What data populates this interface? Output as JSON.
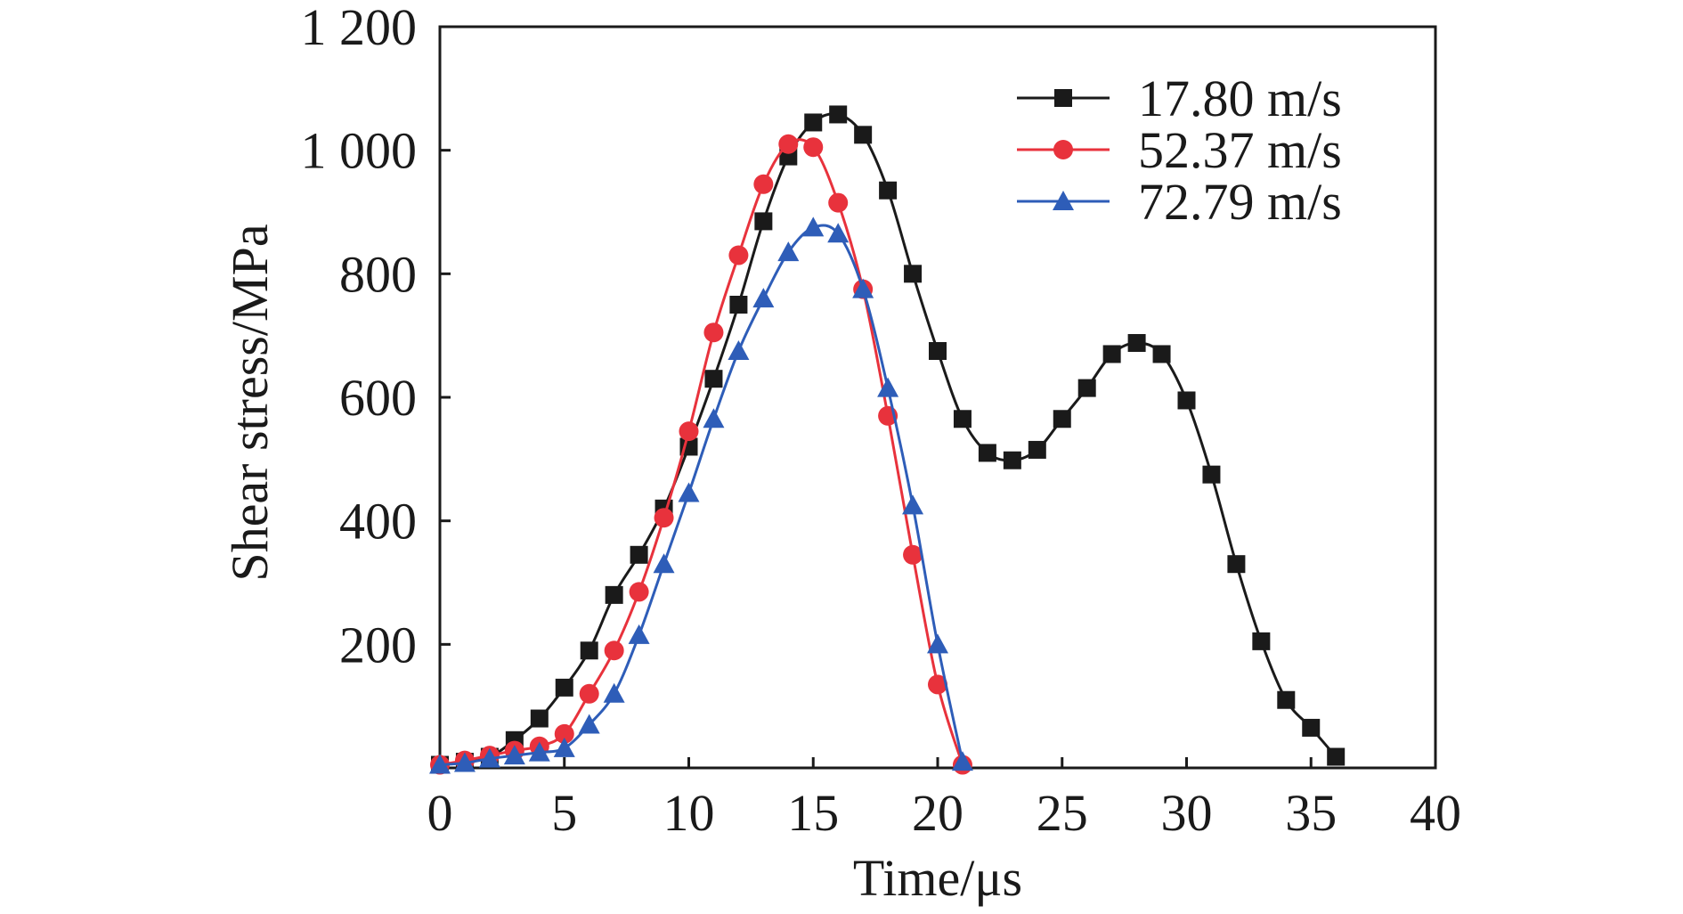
{
  "chart_data": {
    "type": "line",
    "xlabel": "Time/μs",
    "ylabel": "Shear stress/MPa",
    "xlim": [
      0,
      40
    ],
    "ylim": [
      0,
      1200
    ],
    "x_ticks": [
      {
        "value": 0,
        "label": "0"
      },
      {
        "value": 5,
        "label": "5"
      },
      {
        "value": 10,
        "label": "10"
      },
      {
        "value": 15,
        "label": "15"
      },
      {
        "value": 20,
        "label": "20"
      },
      {
        "value": 25,
        "label": "25"
      },
      {
        "value": 30,
        "label": "30"
      },
      {
        "value": 35,
        "label": "35"
      },
      {
        "value": 40,
        "label": "40"
      }
    ],
    "y_ticks": [
      {
        "value": 200,
        "label": "200"
      },
      {
        "value": 400,
        "label": "400"
      },
      {
        "value": 600,
        "label": "600"
      },
      {
        "value": 800,
        "label": "800"
      },
      {
        "value": 1000,
        "label": "1 000"
      },
      {
        "value": 1200,
        "label": "1 200"
      }
    ],
    "grid": false,
    "legend_position": "top-right",
    "series": [
      {
        "name": "17.80 m/s",
        "color": "#1a1a1a",
        "marker": "square",
        "points": [
          [
            0,
            5
          ],
          [
            1,
            10
          ],
          [
            2,
            18
          ],
          [
            3,
            45
          ],
          [
            4,
            80
          ],
          [
            5,
            130
          ],
          [
            6,
            190
          ],
          [
            7,
            280
          ],
          [
            8,
            345
          ],
          [
            9,
            420
          ],
          [
            10,
            520
          ],
          [
            11,
            630
          ],
          [
            12,
            750
          ],
          [
            13,
            885
          ],
          [
            14,
            990
          ],
          [
            15,
            1045
          ],
          [
            16,
            1058
          ],
          [
            17,
            1025
          ],
          [
            18,
            935
          ],
          [
            19,
            800
          ],
          [
            20,
            675
          ],
          [
            21,
            565
          ],
          [
            22,
            510
          ],
          [
            23,
            498
          ],
          [
            24,
            515
          ],
          [
            25,
            565
          ],
          [
            26,
            615
          ],
          [
            27,
            670
          ],
          [
            28,
            688
          ],
          [
            29,
            670
          ],
          [
            30,
            595
          ],
          [
            31,
            475
          ],
          [
            32,
            330
          ],
          [
            33,
            205
          ],
          [
            34,
            110
          ],
          [
            35,
            65
          ],
          [
            36,
            18
          ]
        ]
      },
      {
        "name": "52.37 m/s",
        "color": "#e8323c",
        "marker": "circle",
        "points": [
          [
            0,
            5
          ],
          [
            1,
            12
          ],
          [
            2,
            20
          ],
          [
            3,
            28
          ],
          [
            4,
            35
          ],
          [
            5,
            55
          ],
          [
            6,
            120
          ],
          [
            7,
            190
          ],
          [
            8,
            285
          ],
          [
            9,
            405
          ],
          [
            10,
            545
          ],
          [
            11,
            705
          ],
          [
            12,
            830
          ],
          [
            13,
            945
          ],
          [
            14,
            1010
          ],
          [
            15,
            1005
          ],
          [
            16,
            915
          ],
          [
            17,
            775
          ],
          [
            18,
            570
          ],
          [
            19,
            345
          ],
          [
            20,
            135
          ],
          [
            21,
            5
          ]
        ]
      },
      {
        "name": "72.79 m/s",
        "color": "#2e5db8",
        "marker": "triangle",
        "points": [
          [
            0,
            5
          ],
          [
            1,
            8
          ],
          [
            2,
            15
          ],
          [
            3,
            20
          ],
          [
            4,
            25
          ],
          [
            5,
            32
          ],
          [
            6,
            70
          ],
          [
            7,
            120
          ],
          [
            8,
            215
          ],
          [
            9,
            330
          ],
          [
            10,
            445
          ],
          [
            11,
            565
          ],
          [
            12,
            675
          ],
          [
            13,
            760
          ],
          [
            14,
            835
          ],
          [
            15,
            875
          ],
          [
            16,
            865
          ],
          [
            17,
            775
          ],
          [
            18,
            615
          ],
          [
            19,
            425
          ],
          [
            20,
            200
          ],
          [
            21,
            10
          ]
        ]
      }
    ]
  }
}
